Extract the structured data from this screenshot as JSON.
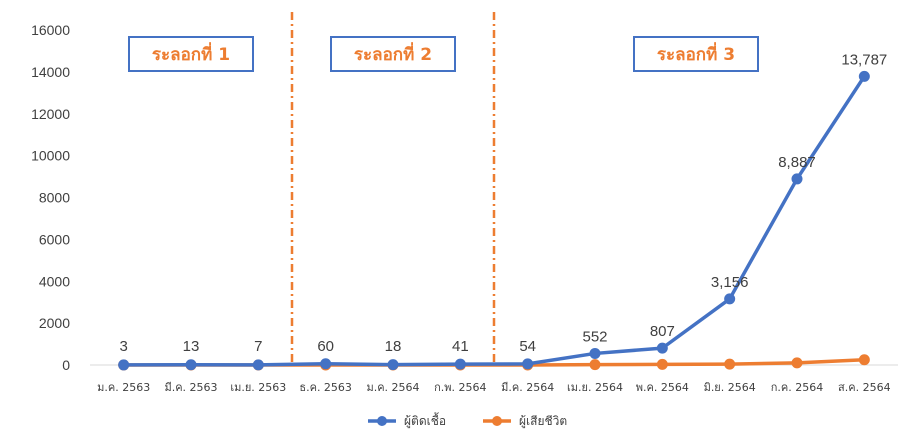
{
  "chart_data": {
    "type": "line",
    "categories": [
      "ม.ค. 2563",
      "มี.ค. 2563",
      "เม.ย. 2563",
      "ธ.ค. 2563",
      "ม.ค. 2564",
      "ก.พ. 2564",
      "มี.ค. 2564",
      "เม.ย. 2564",
      "พ.ค. 2564",
      "มิ.ย. 2564",
      "ก.ค. 2564",
      "ส.ค. 2564"
    ],
    "ylim": [
      0,
      16000
    ],
    "yticks": [
      "0",
      "2000",
      "4000",
      "6000",
      "8000",
      "10000",
      "12000",
      "14000",
      "16000"
    ],
    "series": [
      {
        "name": "ผู้ติดเชื้อ",
        "color": "#4472C4",
        "values": [
          3,
          13,
          7,
          60,
          18,
          41,
          54,
          552,
          807,
          3156,
          8887,
          13787
        ],
        "labels": [
          "3",
          "13",
          "7",
          "60",
          "18",
          "41",
          "54",
          "552",
          "807",
          "3,156",
          "8,887",
          "13,787"
        ]
      },
      {
        "name": "ผู้เสียชีวิต",
        "color": "#ED7D31",
        "values": [
          0,
          0,
          0,
          0,
          0,
          0,
          0,
          20,
          30,
          40,
          100,
          250
        ]
      }
    ],
    "annotations": {
      "waves": [
        {
          "label": "ระลอกที่ 1",
          "from_index": 0,
          "to_index": 2
        },
        {
          "label": "ระลอกที่ 2",
          "from_index": 3,
          "to_index": 5
        },
        {
          "label": "ระลอกที่ 3",
          "from_index": 6,
          "to_index": 11
        }
      ],
      "divider_after_index": [
        2,
        5
      ],
      "divider_color": "#ED7D31",
      "box_border_color": "#4472C4"
    },
    "legend_placement": "bottom",
    "grid": false
  }
}
